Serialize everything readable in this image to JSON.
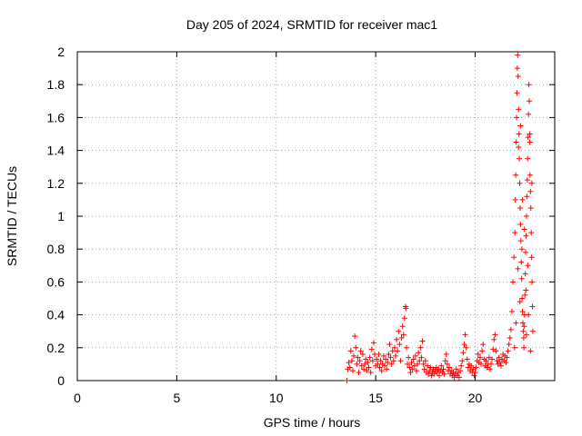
{
  "chart_data": {
    "type": "scatter",
    "title": "Day 205 of 2024, SRMTID for receiver mac1",
    "xlabel": "GPS time / hours",
    "ylabel": "SRMTID / TECUs",
    "xlim": [
      0,
      24
    ],
    "ylim": [
      0,
      2
    ],
    "xticks": [
      "0",
      "5",
      "10",
      "15",
      "20"
    ],
    "yticks": [
      "0",
      "0.2",
      "0.4",
      "0.6",
      "0.8",
      "1",
      "1.2",
      "1.4",
      "1.6",
      "1.8",
      "2"
    ],
    "grid": true,
    "marker": "+",
    "marker_color": "#ff0000",
    "series": [
      {
        "points": [
          [
            13.55,
            0.0
          ],
          [
            13.6,
            0.07
          ],
          [
            13.65,
            0.11
          ],
          [
            13.7,
            0.08
          ],
          [
            13.75,
            0.18
          ],
          [
            13.8,
            0.12
          ],
          [
            13.85,
            0.06
          ],
          [
            13.9,
            0.15
          ],
          [
            13.95,
            0.27
          ],
          [
            14.0,
            0.2
          ],
          [
            14.05,
            0.1
          ],
          [
            14.1,
            0.14
          ],
          [
            14.15,
            0.05
          ],
          [
            14.2,
            0.12
          ],
          [
            14.25,
            0.18
          ],
          [
            14.3,
            0.09
          ],
          [
            14.35,
            0.16
          ],
          [
            14.4,
            0.07
          ],
          [
            14.45,
            0.1
          ],
          [
            14.5,
            0.13
          ],
          [
            14.55,
            0.06
          ],
          [
            14.6,
            0.11
          ],
          [
            14.65,
            0.08
          ],
          [
            14.7,
            0.14
          ],
          [
            14.75,
            0.05
          ],
          [
            14.8,
            0.19
          ],
          [
            14.85,
            0.12
          ],
          [
            14.9,
            0.23
          ],
          [
            14.95,
            0.16
          ],
          [
            15.0,
            0.09
          ],
          [
            15.05,
            0.13
          ],
          [
            15.1,
            0.1
          ],
          [
            15.15,
            0.16
          ],
          [
            15.2,
            0.08
          ],
          [
            15.25,
            0.12
          ],
          [
            15.3,
            0.06
          ],
          [
            15.35,
            0.1
          ],
          [
            15.4,
            0.15
          ],
          [
            15.45,
            0.09
          ],
          [
            15.5,
            0.13
          ],
          [
            15.55,
            0.07
          ],
          [
            15.6,
            0.11
          ],
          [
            15.65,
            0.16
          ],
          [
            15.7,
            0.22
          ],
          [
            15.75,
            0.14
          ],
          [
            15.8,
            0.1
          ],
          [
            15.85,
            0.18
          ],
          [
            15.9,
            0.12
          ],
          [
            15.95,
            0.2
          ],
          [
            16.0,
            0.15
          ],
          [
            16.05,
            0.25
          ],
          [
            16.1,
            0.18
          ],
          [
            16.15,
            0.3
          ],
          [
            16.2,
            0.22
          ],
          [
            16.25,
            0.12
          ],
          [
            16.3,
            0.26
          ],
          [
            16.35,
            0.33
          ],
          [
            16.4,
            0.28
          ],
          [
            16.45,
            0.38
          ],
          [
            16.5,
            0.45
          ],
          [
            16.52,
            0.44
          ],
          [
            16.55,
            0.2
          ],
          [
            16.6,
            0.1
          ],
          [
            16.65,
            0.14
          ],
          [
            16.7,
            0.08
          ],
          [
            16.75,
            0.05
          ],
          [
            16.8,
            0.11
          ],
          [
            16.85,
            0.07
          ],
          [
            16.9,
            0.13
          ],
          [
            16.95,
            0.09
          ],
          [
            17.0,
            0.15
          ],
          [
            17.05,
            0.06
          ],
          [
            17.1,
            0.1
          ],
          [
            17.15,
            0.17
          ],
          [
            17.2,
            0.12
          ],
          [
            17.25,
            0.2
          ],
          [
            17.3,
            0.14
          ],
          [
            17.35,
            0.24
          ],
          [
            17.4,
            0.1
          ],
          [
            17.45,
            0.07
          ],
          [
            17.5,
            0.12
          ],
          [
            17.55,
            0.05
          ],
          [
            17.6,
            0.09
          ],
          [
            17.65,
            0.04
          ],
          [
            17.7,
            0.06
          ],
          [
            17.75,
            0.08
          ],
          [
            17.8,
            0.03
          ],
          [
            17.85,
            0.05
          ],
          [
            17.9,
            0.07
          ],
          [
            17.95,
            0.04
          ],
          [
            18.0,
            0.06
          ],
          [
            18.05,
            0.08
          ],
          [
            18.1,
            0.05
          ],
          [
            18.15,
            0.07
          ],
          [
            18.2,
            0.03
          ],
          [
            18.25,
            0.06
          ],
          [
            18.3,
            0.09
          ],
          [
            18.35,
            0.05
          ],
          [
            18.4,
            0.07
          ],
          [
            18.45,
            0.04
          ],
          [
            18.5,
            0.12
          ],
          [
            18.55,
            0.16
          ],
          [
            18.6,
            0.1
          ],
          [
            18.65,
            0.06
          ],
          [
            18.7,
            0.08
          ],
          [
            18.75,
            0.04
          ],
          [
            18.8,
            0.06
          ],
          [
            18.85,
            0.03
          ],
          [
            18.9,
            0.05
          ],
          [
            18.95,
            0.02
          ],
          [
            19.0,
            0.04
          ],
          [
            19.05,
            0.07
          ],
          [
            19.1,
            0.03
          ],
          [
            19.15,
            0.05
          ],
          [
            19.2,
            0.02
          ],
          [
            19.25,
            0.06
          ],
          [
            19.3,
            0.09
          ],
          [
            19.35,
            0.12
          ],
          [
            19.4,
            0.17
          ],
          [
            19.45,
            0.22
          ],
          [
            19.5,
            0.28
          ],
          [
            19.55,
            0.2
          ],
          [
            19.6,
            0.13
          ],
          [
            19.65,
            0.08
          ],
          [
            19.7,
            0.1
          ],
          [
            19.75,
            0.06
          ],
          [
            19.8,
            0.09
          ],
          [
            19.85,
            0.05
          ],
          [
            19.9,
            0.07
          ],
          [
            19.95,
            0.03
          ],
          [
            20.0,
            0.05
          ],
          [
            20.05,
            0.08
          ],
          [
            20.1,
            0.12
          ],
          [
            20.15,
            0.16
          ],
          [
            20.2,
            0.11
          ],
          [
            20.25,
            0.14
          ],
          [
            20.3,
            0.1
          ],
          [
            20.35,
            0.18
          ],
          [
            20.4,
            0.22
          ],
          [
            20.45,
            0.13
          ],
          [
            20.5,
            0.09
          ],
          [
            20.55,
            0.12
          ],
          [
            20.6,
            0.08
          ],
          [
            20.65,
            0.1
          ],
          [
            20.7,
            0.14
          ],
          [
            20.75,
            0.07
          ],
          [
            20.8,
            0.1
          ],
          [
            20.85,
            0.13
          ],
          [
            20.9,
            0.19
          ],
          [
            20.95,
            0.25
          ],
          [
            21.0,
            0.28
          ],
          [
            21.05,
            0.18
          ],
          [
            21.1,
            0.12
          ],
          [
            21.15,
            0.1
          ],
          [
            21.2,
            0.14
          ],
          [
            21.25,
            0.11
          ],
          [
            21.3,
            0.09
          ],
          [
            21.35,
            0.13
          ],
          [
            21.4,
            0.16
          ],
          [
            21.45,
            0.12
          ],
          [
            21.5,
            0.15
          ],
          [
            21.55,
            0.11
          ],
          [
            21.6,
            0.14
          ],
          [
            21.65,
            0.18
          ],
          [
            21.7,
            0.22
          ],
          [
            21.75,
            0.26
          ],
          [
            21.8,
            0.31
          ],
          [
            21.85,
            0.42
          ],
          [
            21.9,
            0.6
          ],
          [
            21.95,
            0.75
          ],
          [
            22.0,
            0.9
          ],
          [
            22.02,
            1.1
          ],
          [
            22.04,
            1.25
          ],
          [
            22.06,
            1.45
          ],
          [
            22.08,
            1.6
          ],
          [
            22.1,
            1.75
          ],
          [
            22.12,
            1.9
          ],
          [
            22.14,
            1.98
          ],
          [
            22.16,
            1.85
          ],
          [
            22.18,
            1.65
          ],
          [
            22.2,
            1.5
          ],
          [
            22.22,
            1.35
          ],
          [
            22.24,
            1.2
          ],
          [
            22.26,
            1.05
          ],
          [
            22.28,
            0.95
          ],
          [
            22.3,
            0.85
          ],
          [
            22.32,
            0.72
          ],
          [
            22.34,
            0.62
          ],
          [
            22.36,
            0.5
          ],
          [
            22.38,
            0.42
          ],
          [
            22.4,
            0.35
          ],
          [
            22.42,
            0.3
          ],
          [
            22.44,
            0.26
          ],
          [
            22.46,
            0.33
          ],
          [
            22.48,
            0.4
          ],
          [
            22.5,
            0.52
          ],
          [
            22.52,
            0.65
          ],
          [
            22.54,
            0.78
          ],
          [
            22.56,
            0.88
          ],
          [
            22.58,
            1.0
          ],
          [
            22.6,
            1.12
          ],
          [
            22.62,
            1.22
          ],
          [
            22.64,
            1.35
          ],
          [
            22.66,
            1.48
          ],
          [
            22.68,
            1.62
          ],
          [
            22.7,
            1.8
          ],
          [
            22.72,
            1.7
          ],
          [
            22.74,
            1.5
          ],
          [
            22.76,
            1.25
          ],
          [
            22.78,
            1.15
          ],
          [
            22.8,
            1.05
          ],
          [
            22.82,
            0.9
          ],
          [
            22.84,
            0.75
          ],
          [
            22.86,
            0.6
          ],
          [
            22.88,
            0.45
          ],
          [
            22.9,
            0.3
          ],
          [
            22.85,
            1.2
          ],
          [
            22.75,
            1.45
          ],
          [
            22.65,
            0.7
          ],
          [
            22.55,
            0.55
          ],
          [
            22.45,
            0.2
          ],
          [
            22.35,
            0.8
          ],
          [
            22.25,
            0.48
          ],
          [
            22.15,
            0.68
          ],
          [
            22.05,
            0.35
          ],
          [
            21.98,
            0.2
          ],
          [
            22.18,
            1.42
          ],
          [
            22.28,
            1.55
          ],
          [
            22.38,
            1.1
          ],
          [
            22.48,
            0.92
          ],
          [
            22.58,
            0.28
          ],
          [
            22.68,
            0.4
          ],
          [
            22.78,
            0.18
          ]
        ]
      }
    ]
  }
}
